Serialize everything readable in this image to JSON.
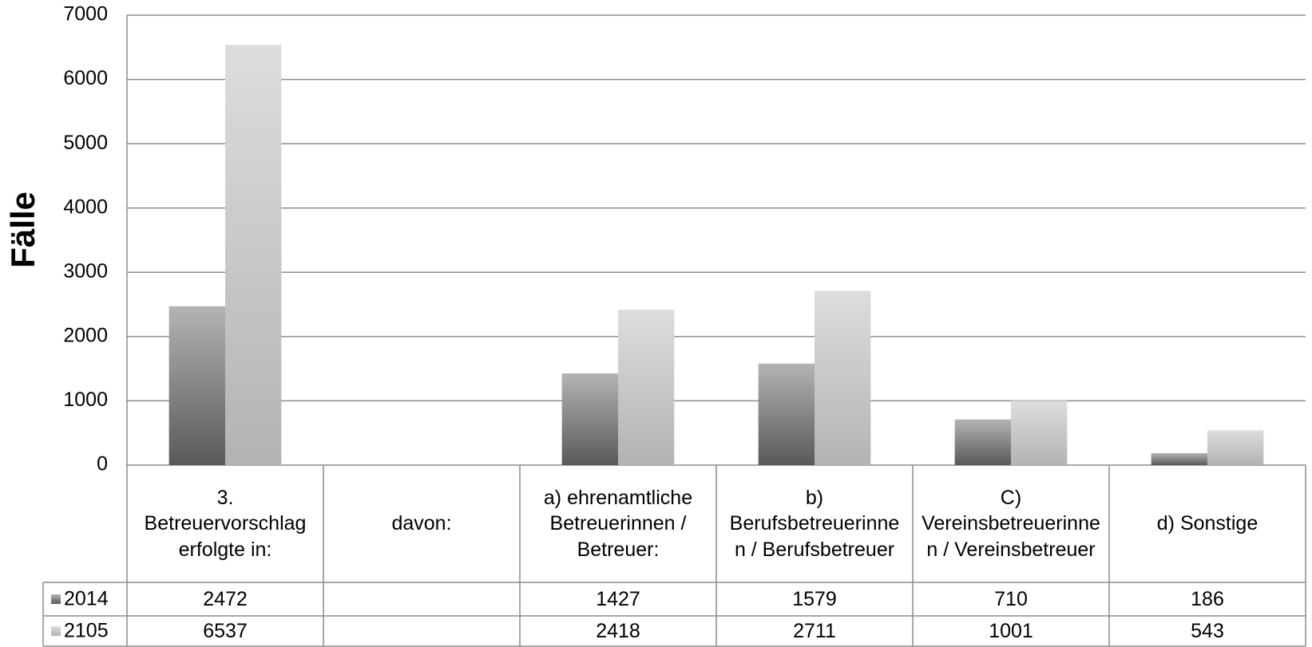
{
  "chart_data": {
    "type": "bar",
    "y_label": "Fälle",
    "categories": [
      "3. Betreuervorschlag erfolgte in:",
      "davon:",
      "a) ehrenamtliche Betreuerinnen / Betreuer:",
      "b) Berufsbetreuerinnen / Berufsbetreuer",
      "C) Vereinsbetreuerinnen / Vereinsbetreuer",
      "d) Sonstige"
    ],
    "series": [
      {
        "name": "2014",
        "color": "#595959",
        "values": [
          2472,
          null,
          1427,
          1579,
          710,
          186
        ]
      },
      {
        "name": "2105",
        "color": "#b3b3b3",
        "values": [
          6537,
          null,
          2418,
          2711,
          1001,
          543
        ]
      }
    ],
    "ylim": [
      0,
      7000
    ],
    "yticks": [
      0,
      1000,
      2000,
      3000,
      4000,
      5000,
      6000,
      7000
    ],
    "grid": true
  }
}
